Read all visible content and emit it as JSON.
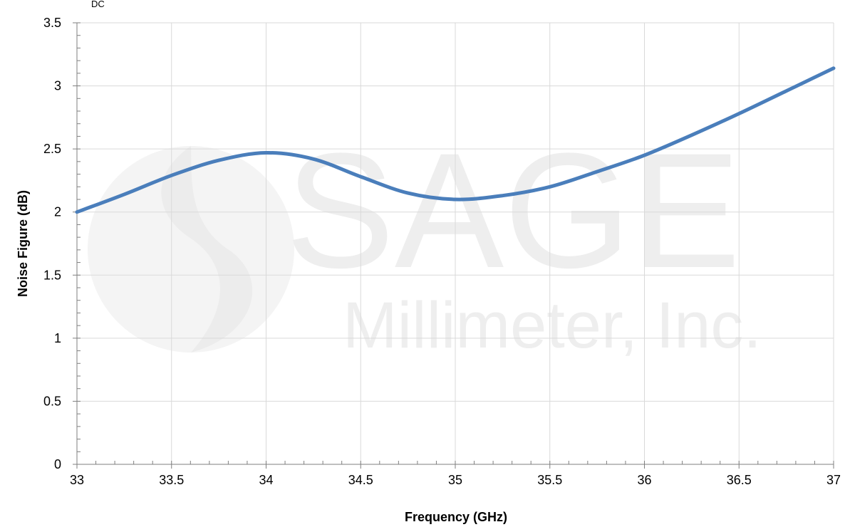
{
  "top_fragment": "DC",
  "watermark": {
    "line1": "SAGE",
    "line2": "Millimeter, Inc."
  },
  "chart_data": {
    "type": "line",
    "xlabel": "Frequency (GHz)",
    "ylabel": "Noise Figure (dB)",
    "xlim": [
      33,
      37
    ],
    "ylim": [
      0,
      3.5
    ],
    "x_ticks": [
      "33",
      "33.5",
      "34",
      "34.5",
      "35",
      "35.5",
      "36",
      "36.5",
      "37"
    ],
    "y_ticks": [
      "0",
      "0.5",
      "1",
      "1.5",
      "2",
      "2.5",
      "3",
      "3.5"
    ],
    "grid": true,
    "series": [
      {
        "color": "#4a7ebb",
        "x": [
          33.0,
          33.25,
          33.5,
          33.75,
          34.0,
          34.25,
          34.5,
          34.75,
          35.0,
          35.25,
          35.5,
          35.75,
          36.0,
          36.25,
          36.5,
          36.75,
          37.0
        ],
        "y": [
          2.0,
          2.14,
          2.29,
          2.41,
          2.47,
          2.42,
          2.28,
          2.15,
          2.1,
          2.13,
          2.2,
          2.32,
          2.45,
          2.61,
          2.78,
          2.96,
          3.14
        ]
      }
    ]
  }
}
